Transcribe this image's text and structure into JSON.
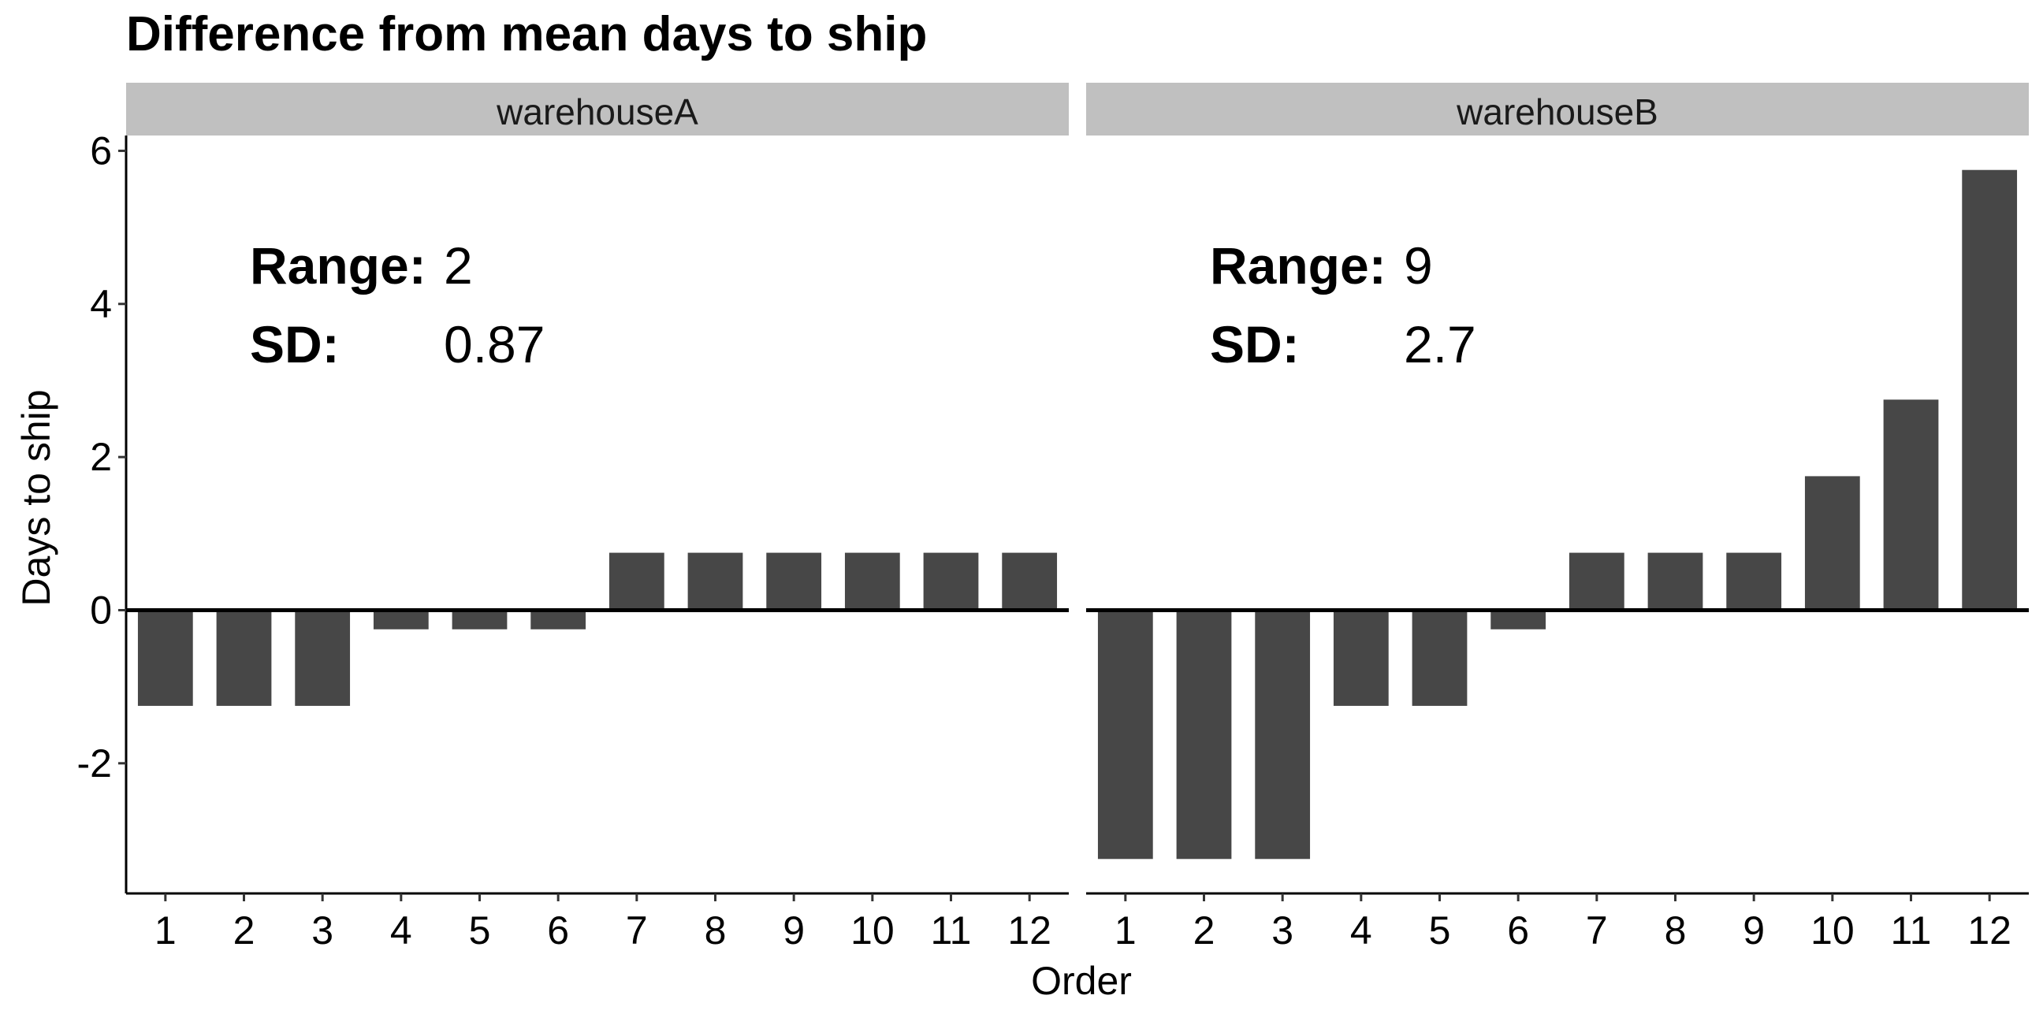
{
  "chart_data": {
    "type": "bar",
    "title": "Difference from mean days to ship",
    "xlabel": "Order",
    "ylabel": "Days to ship",
    "ylim": [
      -3.7,
      6.2
    ],
    "yticks": [
      "-2",
      "0",
      "2",
      "4",
      "6"
    ],
    "yticks_values": [
      -2,
      0,
      2,
      4,
      6
    ],
    "categories": [
      "1",
      "2",
      "3",
      "4",
      "5",
      "6",
      "7",
      "8",
      "9",
      "10",
      "11",
      "12"
    ],
    "grid": false,
    "bar_color": "#474747",
    "strip_color": "#c0c0c0",
    "zero_line": true,
    "facets": [
      {
        "name": "warehouseA",
        "values": [
          -1.25,
          -1.25,
          -1.25,
          -0.25,
          -0.25,
          -0.25,
          0.75,
          0.75,
          0.75,
          0.75,
          0.75,
          0.75
        ],
        "annotations": {
          "range_label": "Range:",
          "range_value": "2",
          "sd_label": "SD:",
          "sd_value": "0.87"
        }
      },
      {
        "name": "warehouseB",
        "values": [
          -3.25,
          -3.25,
          -3.25,
          -1.25,
          -1.25,
          -0.25,
          0.75,
          0.75,
          0.75,
          1.75,
          2.75,
          5.75
        ],
        "annotations": {
          "range_label": "Range:",
          "range_value": "9",
          "sd_label": "SD:",
          "sd_value": "2.7"
        }
      }
    ]
  }
}
